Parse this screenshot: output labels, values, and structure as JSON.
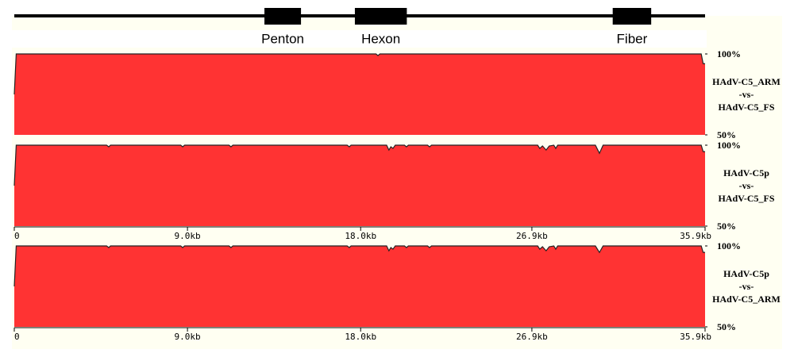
{
  "gene_map": {
    "xlim": [
      0,
      35.9
    ],
    "genes": [
      {
        "label": "Penton",
        "start": 13.0,
        "end": 14.9
      },
      {
        "label": "Hexon",
        "start": 17.7,
        "end": 20.4
      },
      {
        "label": "Fiber",
        "start": 31.1,
        "end": 33.1
      }
    ]
  },
  "chart_data": [
    {
      "type": "area",
      "title": [
        "HAdV-C5_ARM",
        "-vs-",
        "HAdV-C5_FS"
      ],
      "color": "#ff3333",
      "x": [
        0,
        0.1,
        18.8,
        18.9,
        19.0,
        35.7,
        35.8,
        35.9
      ],
      "values": [
        75,
        100,
        100,
        99,
        100,
        100,
        94,
        94
      ],
      "xlim": [
        0,
        35.9
      ],
      "ylim": [
        50,
        100
      ],
      "yticks": [
        {
          "value": 100,
          "label": "100%"
        },
        {
          "value": 50,
          "label": "50%"
        }
      ]
    },
    {
      "type": "area",
      "title": [
        "HAdV-C5p",
        "-vs-",
        "HAdV-C5_FS"
      ],
      "color": "#ff3333",
      "x": [
        0,
        0.1,
        4.8,
        4.91,
        5.0,
        8.65,
        8.75,
        8.85,
        11.16,
        11.26,
        11.36,
        17.3,
        17.41,
        17.5,
        19.35,
        19.47,
        19.57,
        19.68,
        19.8,
        20.28,
        20.38,
        20.48,
        21.48,
        21.58,
        21.68,
        27.2,
        27.31,
        27.45,
        27.64,
        27.8,
        28.04,
        28.14,
        28.24,
        30.2,
        30.41,
        30.6,
        35.7,
        35.8,
        35.9
      ],
      "values": [
        75,
        100,
        100,
        99,
        100,
        100,
        99,
        100,
        100,
        99,
        100,
        100,
        99,
        100,
        100,
        97,
        99,
        98,
        100,
        100,
        99,
        100,
        100,
        99,
        100,
        100,
        98,
        99.5,
        97,
        99.5,
        100,
        98,
        100,
        100,
        95,
        100,
        100,
        96,
        96
      ],
      "xlim": [
        0,
        35.9
      ],
      "ylim": [
        50,
        100
      ],
      "yticks": [
        {
          "value": 100,
          "label": "100%"
        },
        {
          "value": 50,
          "label": "50%"
        }
      ],
      "xticks": [
        0,
        {
          "value": 9.0,
          "label": "9.0kb"
        },
        {
          "value": 18.0,
          "label": "18.0kb"
        },
        {
          "value": 26.9,
          "label": "26.9kb"
        },
        {
          "value": 35.9,
          "label": "35.9kb"
        }
      ]
    },
    {
      "type": "area",
      "title": [
        "HAdV-C5p",
        "-vs-",
        "HAdV-C5_ARM"
      ],
      "color": "#ff3333",
      "x": [
        0,
        0.1,
        4.8,
        4.91,
        5.0,
        8.65,
        8.75,
        8.85,
        11.16,
        11.26,
        11.36,
        17.3,
        17.41,
        17.5,
        19.35,
        19.47,
        19.57,
        19.68,
        19.8,
        20.28,
        20.38,
        20.48,
        21.48,
        21.58,
        21.68,
        27.2,
        27.31,
        27.45,
        27.64,
        27.8,
        28.04,
        28.14,
        28.24,
        30.2,
        30.41,
        30.6,
        35.7,
        35.8,
        35.9
      ],
      "values": [
        75,
        100,
        100,
        99,
        100,
        100,
        99,
        100,
        100,
        99,
        100,
        100,
        99,
        100,
        100,
        97,
        99,
        98,
        100,
        100,
        99,
        100,
        100,
        99,
        100,
        100,
        98,
        99.5,
        97,
        99.5,
        100,
        98,
        100,
        100,
        96,
        100,
        100,
        96,
        96
      ],
      "xlim": [
        0,
        35.9
      ],
      "ylim": [
        50,
        100
      ],
      "yticks": [
        {
          "value": 100,
          "label": "100%"
        },
        {
          "value": 50,
          "label": "50%"
        }
      ],
      "xticks": [
        0,
        {
          "value": 9.0,
          "label": "9.0kb"
        },
        {
          "value": 18.0,
          "label": "18.0kb"
        },
        {
          "value": 26.9,
          "label": "26.9kb"
        },
        {
          "value": 35.9,
          "label": "35.9kb"
        }
      ]
    }
  ]
}
